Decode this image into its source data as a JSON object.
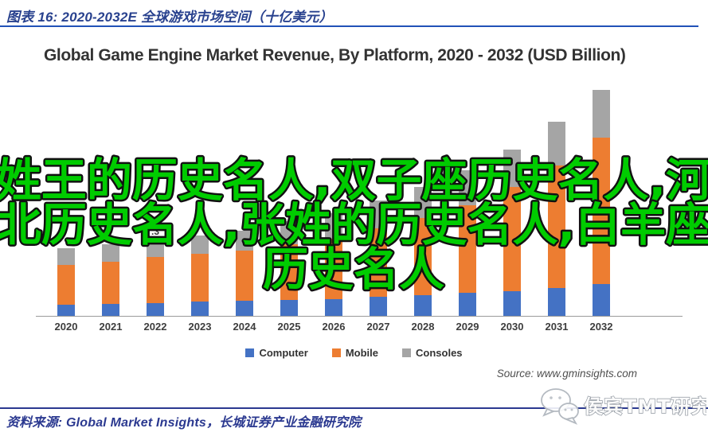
{
  "page": {
    "figure_caption": "图表 16:  2020-2032E 全球游戏市场空间（十亿美元）",
    "footer_source": "资料来源:  Global Market Insights，长城证券产业金融研究院",
    "watermark_badge_text": "侯宾TMT研究",
    "watermark_badge_icon": "wechat-chat-bubbles-icon"
  },
  "overlay_watermark": {
    "lines": [
      "姓王的历史名人,双子座历史名人,河",
      "北历史名人,张姓的历史名人,白羊座",
      "历史名人"
    ],
    "fill_color": "#00CC00",
    "outline_color": "#111111"
  },
  "chart_data": {
    "type": "bar",
    "stacked": true,
    "title": "Global Game Engine Market Revenue, By Platform, 2020 - 2032 (USD Billion)",
    "unit": "USD Billion",
    "categories": [
      "2020",
      "2021",
      "2022",
      "2023",
      "2024",
      "2025",
      "2026",
      "2027",
      "2028",
      "2029",
      "2030",
      "2031",
      "2032"
    ],
    "series": [
      {
        "name": "Computer",
        "color": "#4472C4",
        "values": [
          0.33,
          0.35,
          0.37,
          0.42,
          0.44,
          0.47,
          0.49,
          0.56,
          0.6,
          0.67,
          0.72,
          0.81,
          0.93
        ]
      },
      {
        "name": "Mobile",
        "color": "#ED7D31",
        "values": [
          1.16,
          1.23,
          1.35,
          1.4,
          1.47,
          1.63,
          1.77,
          2.0,
          2.26,
          2.56,
          3.05,
          3.58,
          4.28
        ]
      },
      {
        "name": "Consoles",
        "color": "#A5A5A5",
        "values": [
          0.49,
          0.51,
          0.58,
          0.53,
          0.58,
          0.67,
          0.74,
          0.81,
          0.91,
          1.02,
          1.09,
          1.28,
          1.4
        ]
      }
    ],
    "totals_estimated": [
      1.98,
      2.09,
      2.3,
      2.35,
      2.49,
      2.77,
      3.0,
      3.37,
      3.77,
      4.25,
      4.86,
      5.67,
      6.61
    ],
    "values_estimated_from_pixels": true,
    "visible_data_labels": [
      {
        "category": "2021",
        "text": "2"
      },
      {
        "category": "2022",
        "text": ".3"
      }
    ],
    "legend": [
      "Computer",
      "Mobile",
      "Consoles"
    ],
    "legend_position": "bottom-center",
    "y_axis_shown": false,
    "gridlines": false,
    "ylim": [
      0,
      7
    ],
    "source_text": "Source: www.gminsights.com"
  }
}
